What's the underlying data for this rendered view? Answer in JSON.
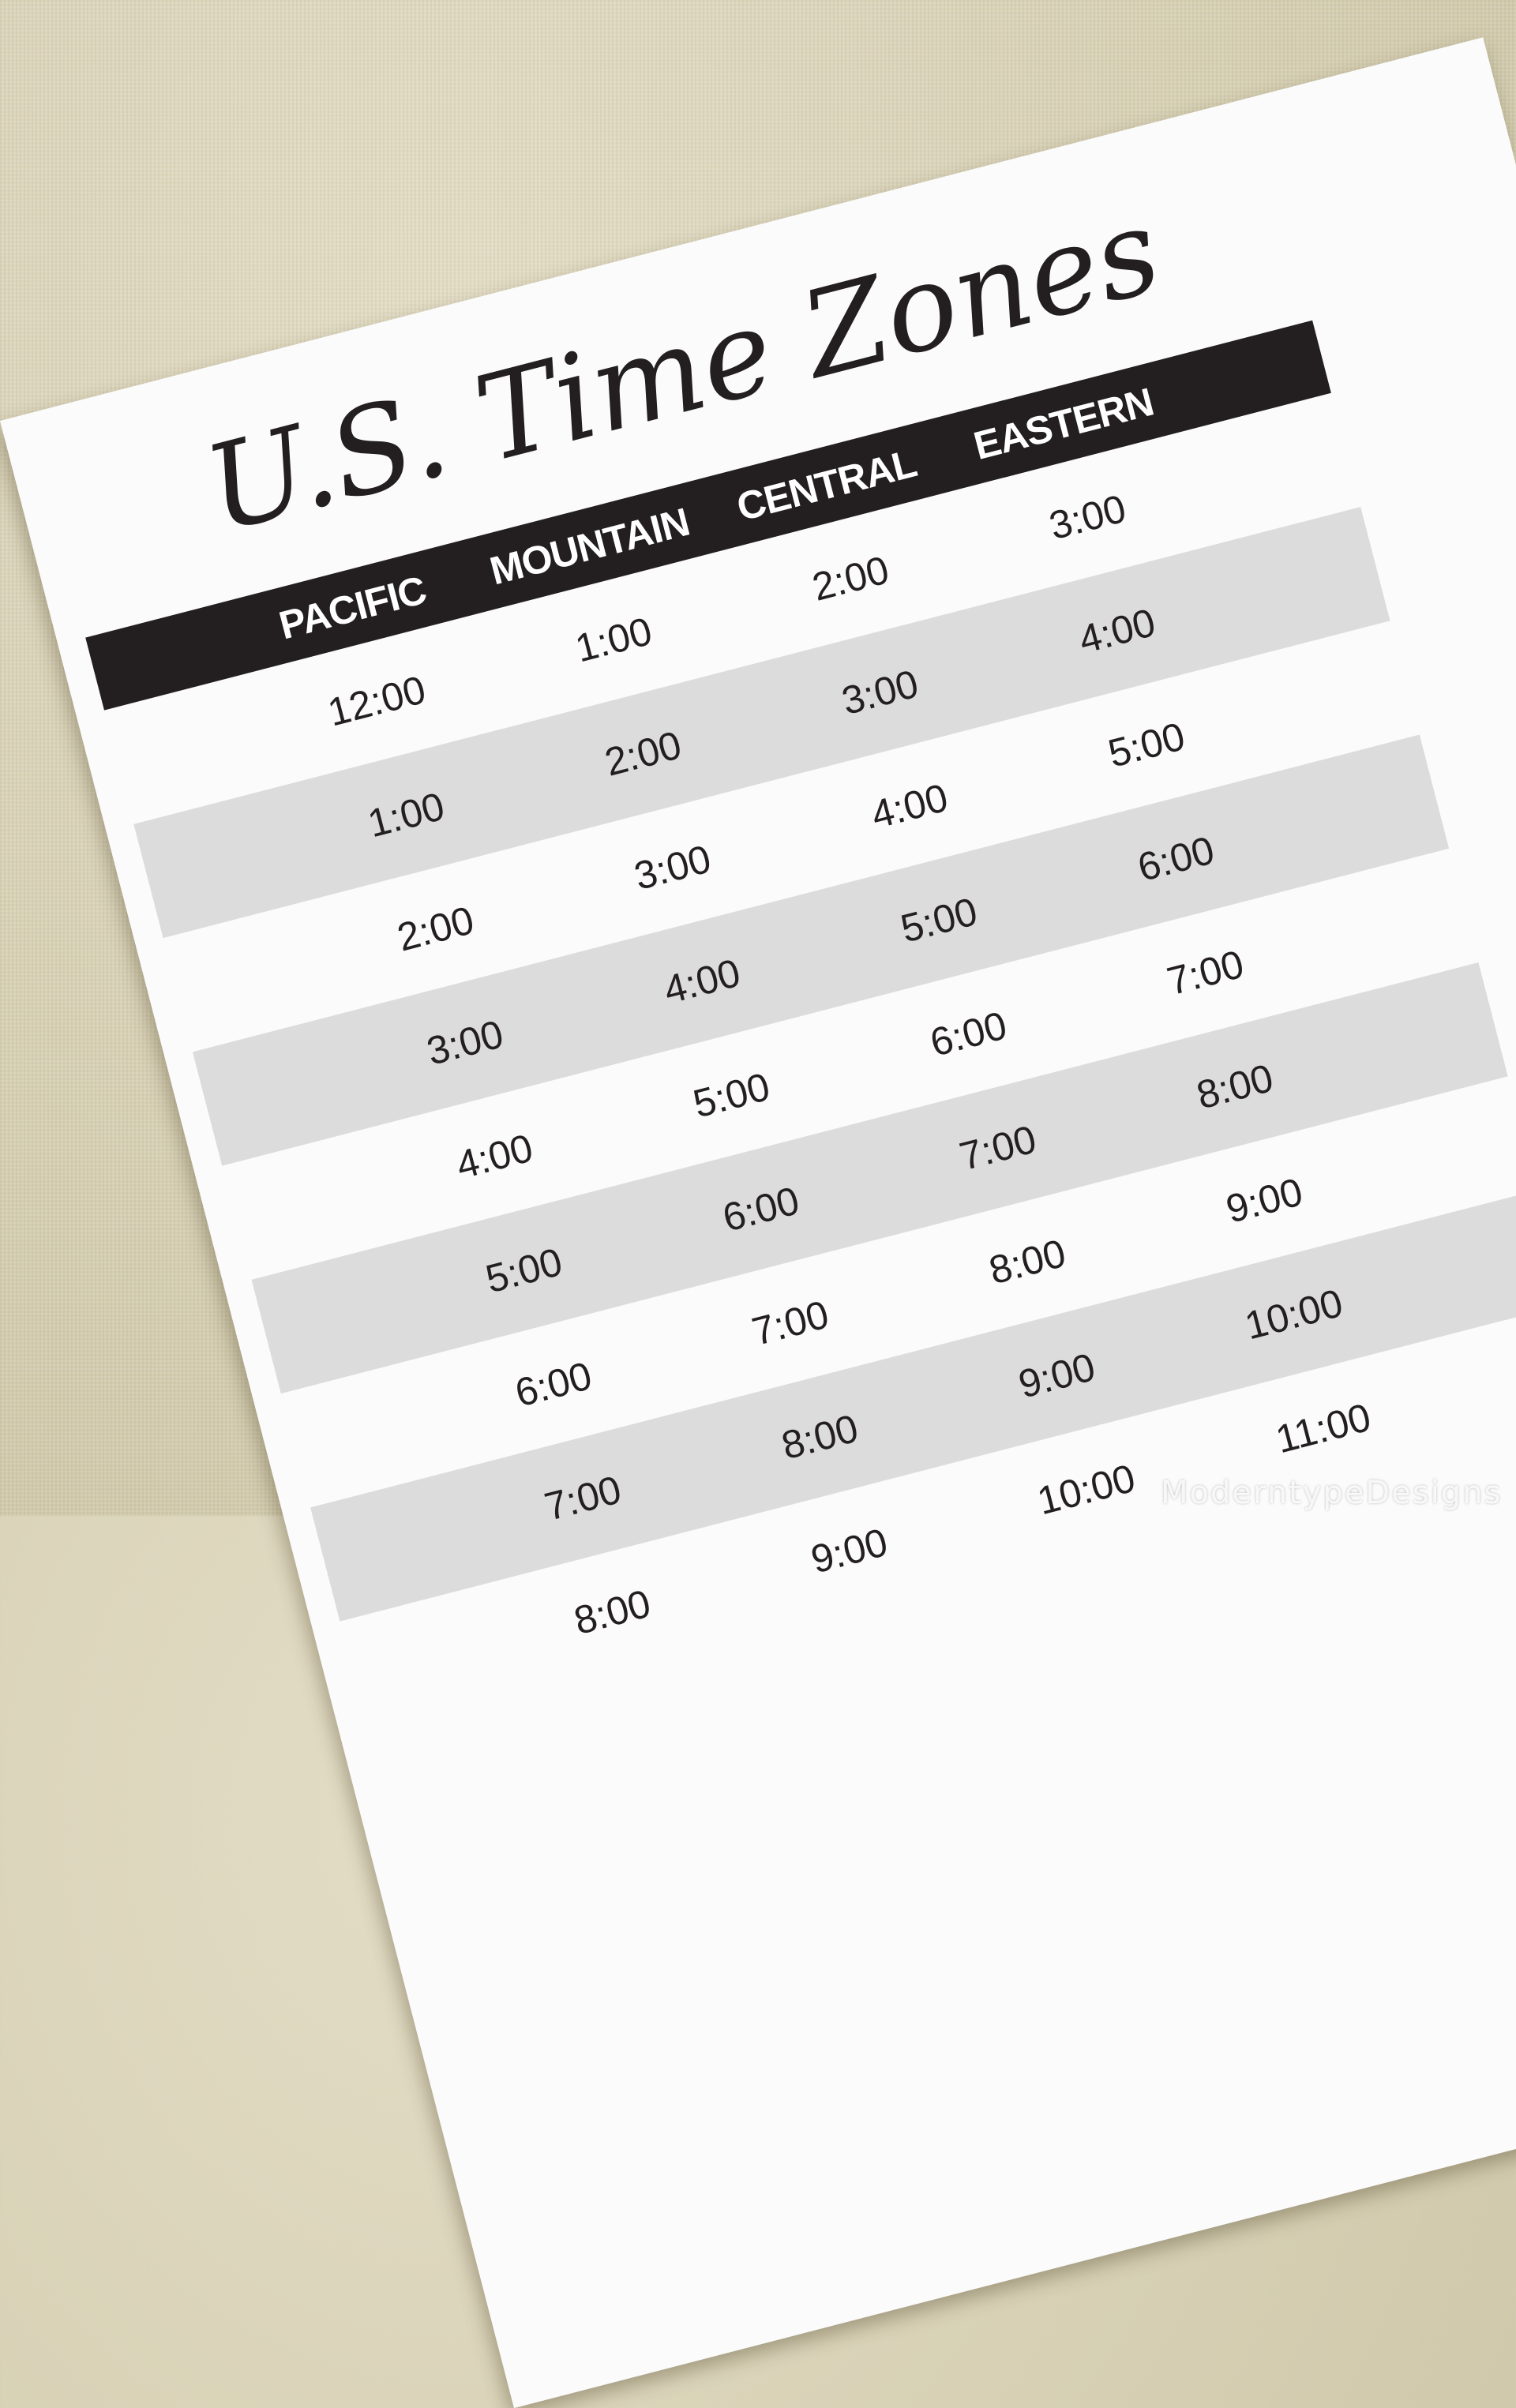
{
  "document": {
    "title": "U.S. Time Zones",
    "columns": [
      "PACIFIC",
      "MOUNTAIN",
      "CENTRAL",
      "EASTERN"
    ],
    "rows": [
      [
        "12:00",
        "1:00",
        "2:00",
        "3:00"
      ],
      [
        "1:00",
        "2:00",
        "3:00",
        "4:00"
      ],
      [
        "2:00",
        "3:00",
        "4:00",
        "5:00"
      ],
      [
        "3:00",
        "4:00",
        "5:00",
        "6:00"
      ],
      [
        "4:00",
        "5:00",
        "6:00",
        "7:00"
      ],
      [
        "5:00",
        "6:00",
        "7:00",
        "8:00"
      ],
      [
        "6:00",
        "7:00",
        "8:00",
        "9:00"
      ],
      [
        "7:00",
        "8:00",
        "9:00",
        "10:00"
      ],
      [
        "8:00",
        "9:00",
        "10:00",
        "11:00"
      ]
    ]
  },
  "watermark": "ModerntypeDesigns",
  "colors": {
    "header": "#231f20",
    "stripe": "#dcdcdc",
    "paper": "#fbfbfb",
    "background": "#d6cfb3"
  }
}
